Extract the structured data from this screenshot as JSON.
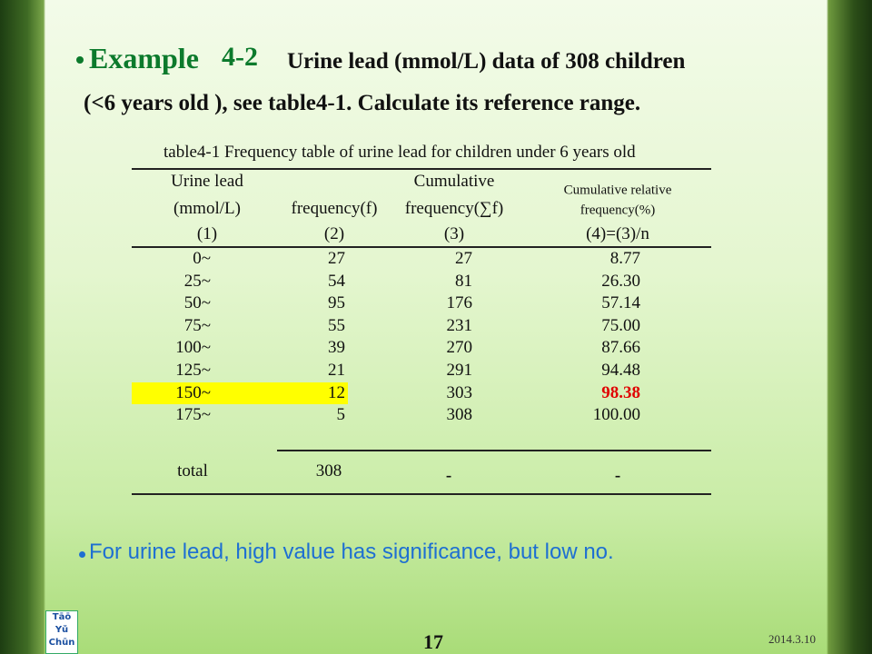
{
  "slide": {
    "title": {
      "label": "Example",
      "number": "4-2",
      "line1": "Urine lead (mmol/L) data of 308 children",
      "line2": "(<6 years old ), see table4-1. Calculate its reference range."
    },
    "table": {
      "caption": "table4-1  Frequency table of urine lead for children under 6 years old",
      "header": [
        [
          "Urine lead",
          "(mmol/L)"
        ],
        [
          "frequency(f)"
        ],
        [
          "Cumulative",
          "frequency(∑f)"
        ],
        [
          "Cumulative relative",
          "frequency(%)"
        ]
      ],
      "index": [
        "(1)",
        "(2)",
        "(3)",
        "(4)=(3)/n"
      ],
      "rows": [
        [
          "0~",
          "27",
          "27",
          "8.77"
        ],
        [
          "25~",
          "54",
          "81",
          "26.30"
        ],
        [
          "50~",
          "95",
          "176",
          "57.14"
        ],
        [
          "75~",
          "55",
          "231",
          "75.00"
        ],
        [
          "100~",
          "39",
          "270",
          "87.66"
        ],
        [
          "125~",
          "21",
          "291",
          "94.48"
        ],
        [
          "150~",
          "12",
          "303",
          "98.38"
        ],
        [
          "175~",
          "5",
          "308",
          "100.00"
        ]
      ],
      "total": [
        "total",
        "308",
        "-",
        "-"
      ]
    },
    "note": "For urine lead, high value has significance, but low no.",
    "page_number": "17",
    "date": "2014.3.10",
    "logo": [
      "Tāō",
      "Yǔ",
      "Chūn"
    ]
  }
}
